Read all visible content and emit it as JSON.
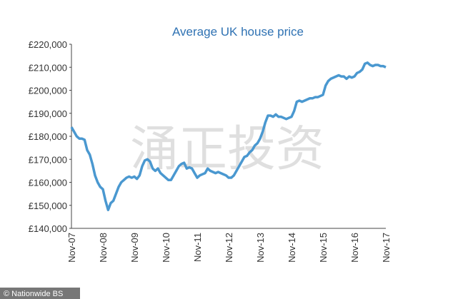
{
  "chart_data": {
    "type": "line",
    "title": "Average UK house price",
    "categories": [
      "Nov-07",
      null,
      null,
      null,
      null,
      null,
      null,
      null,
      null,
      null,
      null,
      null,
      "Nov-08",
      null,
      null,
      null,
      null,
      null,
      null,
      null,
      null,
      null,
      null,
      null,
      "Nov-09",
      null,
      null,
      null,
      null,
      null,
      null,
      null,
      null,
      null,
      null,
      null,
      "Nov-10",
      null,
      null,
      null,
      null,
      null,
      null,
      null,
      null,
      null,
      null,
      null,
      "Nov-11",
      null,
      null,
      null,
      null,
      null,
      null,
      null,
      null,
      null,
      null,
      null,
      "Nov-12",
      null,
      null,
      null,
      null,
      null,
      null,
      null,
      null,
      null,
      null,
      null,
      "Nov-13",
      null,
      null,
      null,
      null,
      null,
      null,
      null,
      null,
      null,
      null,
      null,
      "Nov-14",
      null,
      null,
      null,
      null,
      null,
      null,
      null,
      null,
      null,
      null,
      null,
      "Nov-15",
      null,
      null,
      null,
      null,
      null,
      null,
      null,
      null,
      null,
      null,
      null,
      "Nov-16",
      null,
      null,
      null,
      null,
      null,
      null,
      null,
      null,
      null,
      null,
      null,
      "Nov-17"
    ],
    "values": [
      184000,
      182000,
      180000,
      179000,
      179000,
      178500,
      174000,
      172000,
      168000,
      163000,
      160000,
      158000,
      157000,
      152000,
      148000,
      151000,
      152000,
      155000,
      158000,
      160000,
      161000,
      162000,
      162500,
      162000,
      162500,
      161500,
      163000,
      167000,
      169500,
      170000,
      169000,
      166000,
      165000,
      166000,
      164000,
      163000,
      162000,
      161000,
      161000,
      163000,
      165000,
      167000,
      168000,
      168500,
      166000,
      166500,
      166000,
      164000,
      162000,
      163000,
      163500,
      164000,
      166000,
      165000,
      164500,
      164000,
      164500,
      164000,
      163500,
      163000,
      162000,
      162000,
      163000,
      165000,
      167000,
      169000,
      171000,
      171500,
      173000,
      174000,
      176000,
      177000,
      179000,
      182000,
      186000,
      189000,
      189000,
      188500,
      189500,
      188500,
      188500,
      188000,
      187500,
      188000,
      188500,
      191000,
      195000,
      195500,
      195000,
      195500,
      196000,
      196500,
      196500,
      197000,
      197000,
      197500,
      198000,
      202000,
      204000,
      205000,
      205500,
      206000,
      206500,
      206000,
      206000,
      205000,
      206000,
      205500,
      206000,
      207500,
      208000,
      209000,
      211500,
      212000,
      211000,
      210500,
      211000,
      211000,
      210500,
      210500,
      210000
    ],
    "color": "#4a98d0",
    "ylim": [
      140000,
      220000
    ],
    "yticks": [
      {
        "value": 140000,
        "label": "£140,000"
      },
      {
        "value": 150000,
        "label": "£150,000"
      },
      {
        "value": 160000,
        "label": "£160,000"
      },
      {
        "value": 170000,
        "label": "£170,000"
      },
      {
        "value": 180000,
        "label": "£180,000"
      },
      {
        "value": 190000,
        "label": "£190,000"
      },
      {
        "value": 200000,
        "label": "£200,000"
      },
      {
        "value": 210000,
        "label": "£210,000"
      },
      {
        "value": 220000,
        "label": "£220,000"
      }
    ],
    "grid": false,
    "watermark": "涌正投资",
    "credit": "© Nationwide BS"
  }
}
